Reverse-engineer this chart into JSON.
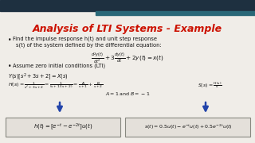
{
  "title": "Analysis of LTI Systems - Example",
  "title_color": "#cc1100",
  "bg_color": "#f0ede8",
  "header_dark": "#1e3040",
  "header_light": "#2a6878",
  "bullet1": "Find the impulse response h(t) and unit step response",
  "bullet1b": "s(t) of the system defined by the differential equation:",
  "bullet2": "Assume zero initial conditions (LTI)",
  "arrow_color": "#2244aa",
  "box_bg": "#e4e0da",
  "box_edge": "#888880",
  "text_color": "#111111"
}
